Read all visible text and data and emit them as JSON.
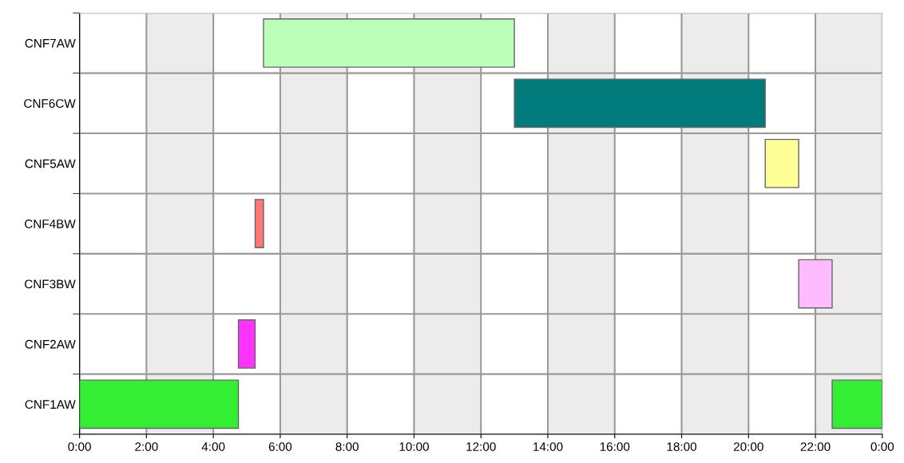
{
  "chart_data": {
    "type": "bar",
    "orientation": "horizontal",
    "categories": [
      "CNF7AW",
      "CNF6CW",
      "CNF5AW",
      "CNF4BW",
      "CNF3BW",
      "CNF2AW",
      "CNF1AW"
    ],
    "series": [
      {
        "base": [
          5.5,
          13.0,
          20.5,
          5.25,
          21.5,
          4.75,
          0
        ],
        "values": [
          7.5,
          7.5,
          1.0,
          0.25,
          1.0,
          0.5,
          4.75
        ],
        "colors": [
          "#bbffbb",
          "#007a7a",
          "#ffff99",
          "#ff7777",
          "#ffbbff",
          "#ff33ff",
          "#33ee33"
        ]
      },
      {
        "base": [
          null,
          null,
          null,
          null,
          null,
          null,
          22.5
        ],
        "values": [
          null,
          null,
          null,
          null,
          null,
          null,
          1.5
        ],
        "colors": [
          null,
          null,
          null,
          null,
          null,
          null,
          "#33ee33"
        ]
      }
    ],
    "xlim": [
      0,
      24
    ],
    "xticks": [
      {
        "value": 0,
        "label": "0:00"
      },
      {
        "value": 2,
        "label": "2:00"
      },
      {
        "value": 4,
        "label": "4:00"
      },
      {
        "value": 6,
        "label": "6:00"
      },
      {
        "value": 8,
        "label": "8:00"
      },
      {
        "value": 10,
        "label": "10:00"
      },
      {
        "value": 12,
        "label": "12:00"
      },
      {
        "value": 14,
        "label": "14:00"
      },
      {
        "value": 16,
        "label": "16:00"
      },
      {
        "value": 18,
        "label": "18:00"
      },
      {
        "value": 20,
        "label": "20:00"
      },
      {
        "value": 22,
        "label": "22:00"
      },
      {
        "value": 24,
        "label": "0:00"
      }
    ],
    "bands": [
      {
        "axis": "x",
        "from": 2,
        "to": 4,
        "color": "#ececec"
      },
      {
        "axis": "x",
        "from": 6,
        "to": 8,
        "color": "#ececec"
      },
      {
        "axis": "x",
        "from": 10,
        "to": 12,
        "color": "#ececec"
      },
      {
        "axis": "x",
        "from": 14,
        "to": 16,
        "color": "#ececec"
      },
      {
        "axis": "x",
        "from": 18,
        "to": 20,
        "color": "#ececec"
      },
      {
        "axis": "x",
        "from": 22,
        "to": 24,
        "color": "#ececec"
      }
    ],
    "grid": true
  }
}
